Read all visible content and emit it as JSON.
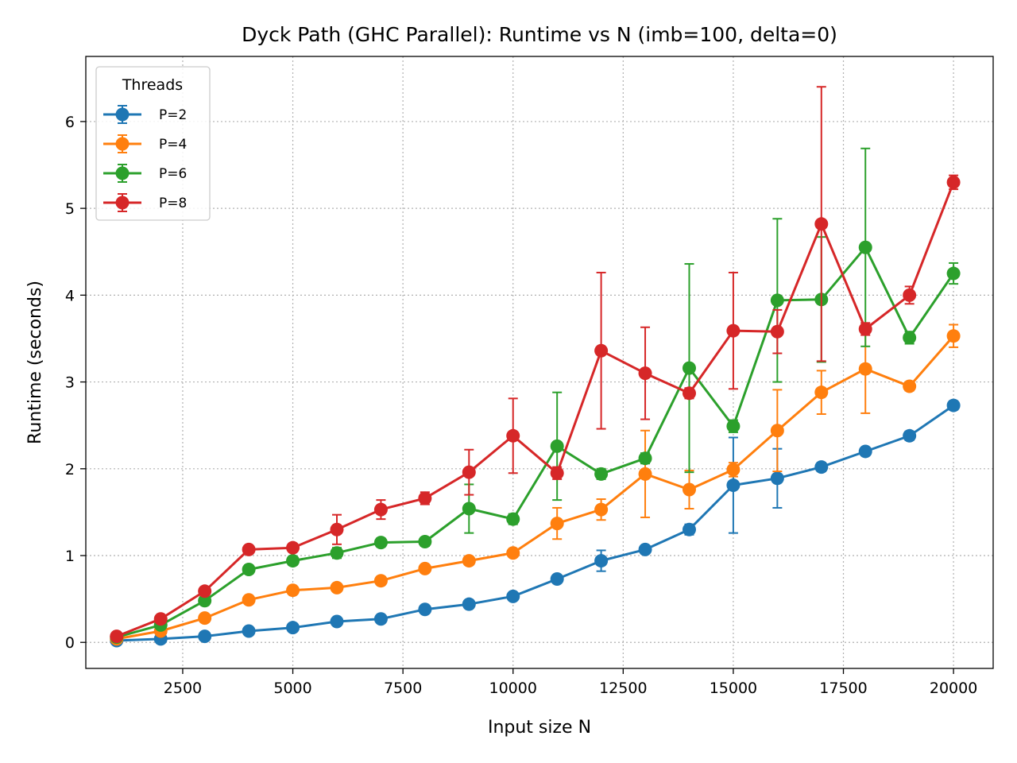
{
  "chart_data": {
    "type": "line",
    "title": "Dyck Path (GHC Parallel): Runtime vs N  (imb=100, delta=0)",
    "xlabel": "Input size N",
    "ylabel": "Runtime (seconds)",
    "xlim": [
      300,
      20900
    ],
    "ylim": [
      -0.3,
      6.75
    ],
    "xticks": [
      2500,
      5000,
      7500,
      10000,
      12500,
      15000,
      17500,
      20000
    ],
    "yticks": [
      0,
      1,
      2,
      3,
      4,
      5,
      6
    ],
    "grid": true,
    "legend": {
      "title": "Threads",
      "placement": "top-left"
    },
    "x": [
      1000,
      2000,
      3000,
      4000,
      5000,
      6000,
      7000,
      8000,
      9000,
      10000,
      11000,
      12000,
      13000,
      14000,
      15000,
      16000,
      17000,
      18000,
      19000,
      20000
    ],
    "series": [
      {
        "name": "P=2",
        "color": "#1f77b4",
        "values": [
          0.02,
          0.04,
          0.07,
          0.13,
          0.17,
          0.24,
          0.27,
          0.38,
          0.44,
          0.53,
          0.73,
          0.94,
          1.07,
          1.3,
          1.81,
          1.89,
          2.02,
          2.2,
          2.38,
          2.73
        ],
        "errors": [
          0.01,
          0.01,
          0.02,
          0.02,
          0.02,
          0.03,
          0.03,
          0.03,
          0.03,
          0.04,
          0.04,
          0.12,
          0.04,
          0.06,
          0.55,
          0.34,
          0.05,
          0.04,
          0.05,
          0.05
        ]
      },
      {
        "name": "P=4",
        "color": "#ff7f0e",
        "values": [
          0.04,
          0.13,
          0.28,
          0.49,
          0.6,
          0.63,
          0.71,
          0.85,
          0.94,
          1.03,
          1.37,
          1.53,
          1.94,
          1.76,
          1.99,
          2.44,
          2.88,
          3.15,
          2.95,
          3.53
        ],
        "errors": [
          0.01,
          0.02,
          0.03,
          0.03,
          0.03,
          0.03,
          0.04,
          0.04,
          0.04,
          0.04,
          0.18,
          0.12,
          0.5,
          0.22,
          0.08,
          0.47,
          0.25,
          0.51,
          0.05,
          0.13
        ]
      },
      {
        "name": "P=6",
        "color": "#2ca02c",
        "values": [
          0.06,
          0.2,
          0.48,
          0.84,
          0.94,
          1.03,
          1.15,
          1.16,
          1.54,
          1.42,
          2.26,
          1.94,
          2.12,
          3.16,
          2.49,
          3.94,
          3.95,
          4.55,
          3.51,
          4.25
        ],
        "errors": [
          0.01,
          0.02,
          0.03,
          0.05,
          0.05,
          0.06,
          0.05,
          0.05,
          0.28,
          0.06,
          0.62,
          0.06,
          0.06,
          1.2,
          0.07,
          0.94,
          0.72,
          1.14,
          0.07,
          0.12
        ]
      },
      {
        "name": "P=8",
        "color": "#d62728",
        "values": [
          0.07,
          0.27,
          0.59,
          1.07,
          1.09,
          1.3,
          1.53,
          1.66,
          1.96,
          2.38,
          1.95,
          3.36,
          3.1,
          2.87,
          3.59,
          3.58,
          4.82,
          3.61,
          4.0,
          5.3
        ],
        "errors": [
          0.01,
          0.02,
          0.03,
          0.04,
          0.03,
          0.17,
          0.11,
          0.07,
          0.26,
          0.43,
          0.07,
          0.9,
          0.53,
          0.06,
          0.67,
          0.25,
          1.58,
          0.07,
          0.1,
          0.08
        ]
      }
    ]
  }
}
